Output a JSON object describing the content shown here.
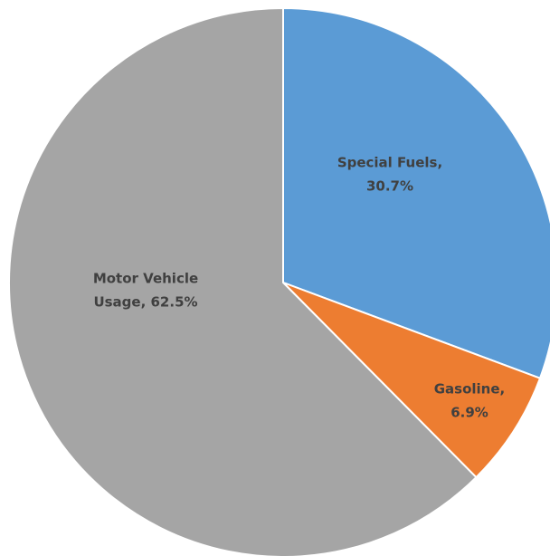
{
  "chart_data": {
    "type": "pie",
    "values": [
      30.7,
      6.9,
      62.5
    ],
    "value_labels": [
      [
        "Special Fuels,",
        "30.7%"
      ],
      [
        "Gasoline,",
        "6.9%"
      ],
      [
        "Motor Vehicle",
        "Usage, 62.5%"
      ]
    ],
    "colors": [
      "#5b9bd5",
      "#ed7d31",
      "#a5a5a5"
    ]
  }
}
